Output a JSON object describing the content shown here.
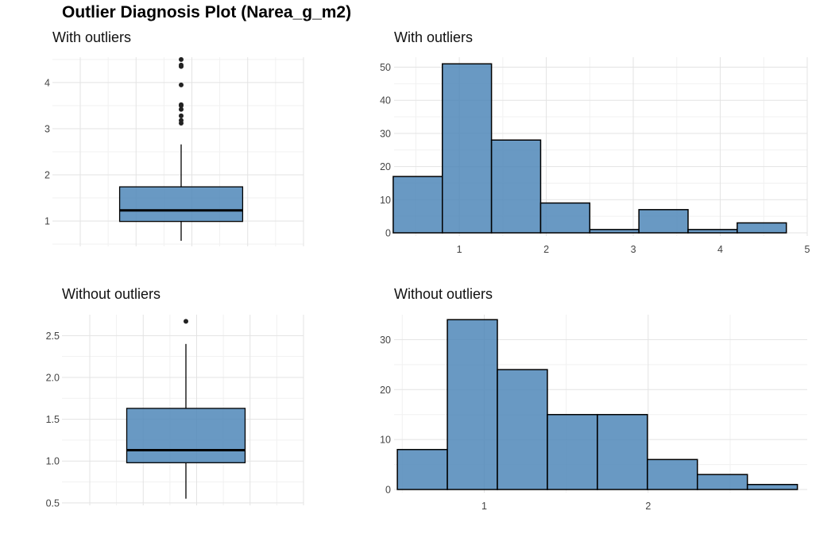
{
  "title": "Outlier Diagnosis Plot (Narea_g_m2)",
  "colors": {
    "fill": "#4f87b8",
    "outline": "#000000",
    "grid": "#e3e3e3"
  },
  "chart_data": [
    {
      "id": "box-with",
      "type": "boxplot",
      "title": "With outliers",
      "ylim": [
        0.45,
        4.55
      ],
      "yticks": [
        1,
        2,
        3,
        4
      ],
      "q1": 0.99,
      "median": 1.23,
      "q3": 1.74,
      "whisker_low": 0.57,
      "whisker_high": 2.66,
      "outliers": [
        3.12,
        3.18,
        3.28,
        3.42,
        3.5,
        3.52,
        3.95,
        4.35,
        4.38,
        4.5
      ]
    },
    {
      "id": "hist-with",
      "type": "bar",
      "title": "With outliers",
      "xlim": [
        0.25,
        5.0
      ],
      "ylim": [
        0,
        53
      ],
      "xticks": [
        1,
        2,
        3,
        4,
        5
      ],
      "yticks": [
        0,
        10,
        20,
        30,
        40,
        50
      ],
      "bin_edges": [
        0.24,
        0.805,
        1.37,
        1.935,
        2.5,
        3.065,
        3.63,
        4.195,
        4.76
      ],
      "counts": [
        17,
        51,
        28,
        9,
        1,
        7,
        1,
        3
      ]
    },
    {
      "id": "box-without",
      "type": "boxplot",
      "title": "Without outliers",
      "ylim": [
        0.47,
        2.75
      ],
      "yticks": [
        0.5,
        1.0,
        1.5,
        2.0,
        2.5
      ],
      "q1": 0.98,
      "median": 1.13,
      "q3": 1.63,
      "whisker_low": 0.55,
      "whisker_high": 2.4,
      "outliers": [
        2.67
      ]
    },
    {
      "id": "hist-without",
      "type": "bar",
      "title": "Without outliers",
      "xlim": [
        0.45,
        2.97
      ],
      "ylim": [
        0,
        35
      ],
      "xticks": [
        1,
        2
      ],
      "yticks": [
        0,
        10,
        20,
        30
      ],
      "bin_edges": [
        0.47,
        0.775,
        1.08,
        1.385,
        1.69,
        1.995,
        2.3,
        2.605,
        2.91
      ],
      "counts": [
        8,
        34,
        24,
        15,
        15,
        6,
        3,
        1
      ]
    }
  ]
}
